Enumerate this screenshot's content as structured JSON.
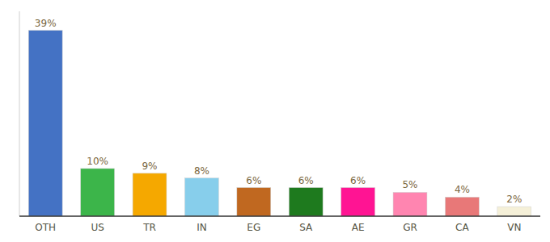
{
  "chart_data": {
    "type": "bar",
    "categories": [
      "OTH",
      "US",
      "TR",
      "IN",
      "EG",
      "SA",
      "AE",
      "GR",
      "CA",
      "VN"
    ],
    "values": [
      39,
      10,
      9,
      8,
      6,
      6,
      6,
      5,
      4,
      2
    ],
    "value_labels": [
      "39%",
      "10%",
      "9%",
      "8%",
      "6%",
      "6%",
      "6%",
      "5%",
      "4%",
      "2%"
    ],
    "colors": [
      "#4472c4",
      "#3cb54a",
      "#f5a800",
      "#87ceeb",
      "#c06820",
      "#1e7a1e",
      "#ff1493",
      "#ff85b0",
      "#e87878",
      "#f5f0d8"
    ],
    "ylim": [
      0,
      43
    ],
    "data_labels": true,
    "tick_labels": "x",
    "grid": false
  }
}
